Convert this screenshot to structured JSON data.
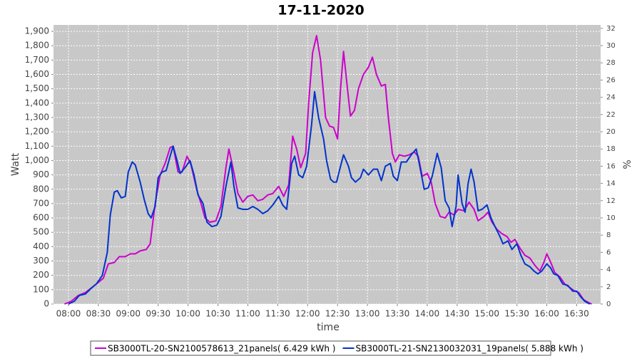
{
  "chart_data": {
    "type": "line",
    "title": "17-11-2020",
    "x_label": "time",
    "y_label": "Watt",
    "y2_label": "%",
    "xlim": [
      "07:45",
      "16:54"
    ],
    "xticks": [
      "08:00",
      "08:30",
      "09:00",
      "09:30",
      "10:00",
      "10:30",
      "11:00",
      "11:30",
      "12:00",
      "12:30",
      "13:00",
      "13:30",
      "14:00",
      "14:30",
      "15:00",
      "15:30",
      "16:00",
      "16:30"
    ],
    "ylim": [
      0,
      1945
    ],
    "yticks": [
      0,
      100,
      200,
      300,
      400,
      500,
      600,
      700,
      800,
      900,
      {
        "value": 1000,
        "label": "1,000"
      },
      {
        "value": 1100,
        "label": "1,100"
      },
      {
        "value": 1200,
        "label": "1,200"
      },
      {
        "value": 1300,
        "label": "1,300"
      },
      {
        "value": 1400,
        "label": "1,400"
      },
      {
        "value": 1500,
        "label": "1,500"
      },
      {
        "value": 1600,
        "label": "1,600"
      },
      {
        "value": 1700,
        "label": "1,700"
      },
      {
        "value": 1800,
        "label": "1,800"
      },
      {
        "value": 1900,
        "label": "1,900"
      }
    ],
    "y2lim": [
      0,
      32.4
    ],
    "y2ticks": [
      0,
      2,
      4,
      6,
      8,
      10,
      12,
      14,
      16,
      18,
      20,
      22,
      24,
      26,
      28,
      30,
      32
    ],
    "grid": true,
    "legend": "bottom",
    "series": [
      {
        "name": "SB3000TL-20-SN2100578613_21panels( 6.429 kWh )",
        "color": "#cc00cc",
        "x": [
          "07:56",
          "08:03",
          "08:10",
          "08:17",
          "08:28",
          "08:35",
          "08:40",
          "08:46",
          "08:51",
          "08:57",
          "09:02",
          "09:07",
          "09:12",
          "09:18",
          "09:22",
          "09:27",
          "09:32",
          "09:37",
          "09:42",
          "09:45",
          "09:50",
          "09:54",
          "09:59",
          "10:03",
          "10:09",
          "10:13",
          "10:17",
          "10:22",
          "10:28",
          "10:33",
          "10:38",
          "10:41",
          "10:45",
          "10:50",
          "10:55",
          "11:00",
          "11:05",
          "11:10",
          "11:15",
          "11:20",
          "11:25",
          "11:31",
          "11:36",
          "11:41",
          "11:45",
          "11:49",
          "11:53",
          "11:58",
          "12:01",
          "12:05",
          "12:09",
          "12:13",
          "12:18",
          "12:22",
          "12:26",
          "12:30",
          "12:33",
          "12:36",
          "12:40",
          "12:43",
          "12:47",
          "12:51",
          "12:56",
          "13:01",
          "13:05",
          "13:09",
          "13:14",
          "13:18",
          "13:21",
          "13:25",
          "13:28",
          "13:32",
          "13:37",
          "13:42",
          "13:47",
          "13:51",
          "13:55",
          "14:00",
          "14:04",
          "14:08",
          "14:13",
          "14:18",
          "14:22",
          "14:27",
          "14:31",
          "14:37",
          "14:42",
          "14:47",
          "14:51",
          "14:57",
          "15:01",
          "15:05",
          "15:10",
          "15:15",
          "15:20",
          "15:24",
          "15:28",
          "15:33",
          "15:38",
          "15:43",
          "15:48",
          "15:53",
          "15:57",
          "16:00",
          "16:04",
          "16:08",
          "16:13",
          "16:18",
          "16:24",
          "16:28",
          "16:32",
          "16:37",
          "16:42",
          "16:45"
        ],
        "values": [
          0,
          20,
          60,
          80,
          140,
          180,
          280,
          290,
          330,
          330,
          350,
          350,
          370,
          380,
          420,
          700,
          900,
          980,
          1090,
          1100,
          920,
          920,
          1030,
          970,
          790,
          700,
          600,
          570,
          580,
          680,
          950,
          1080,
          950,
          770,
          710,
          750,
          760,
          720,
          730,
          760,
          770,
          820,
          750,
          830,
          1170,
          1080,
          950,
          1050,
          1400,
          1750,
          1870,
          1700,
          1300,
          1240,
          1230,
          1150,
          1500,
          1760,
          1500,
          1310,
          1350,
          1500,
          1600,
          1650,
          1720,
          1600,
          1520,
          1530,
          1300,
          1050,
          990,
          1040,
          1030,
          1040,
          1060,
          1030,
          890,
          910,
          850,
          700,
          610,
          600,
          640,
          620,
          660,
          650,
          710,
          660,
          580,
          610,
          640,
          570,
          520,
          490,
          470,
          430,
          450,
          390,
          340,
          320,
          270,
          230,
          290,
          350,
          290,
          220,
          190,
          140,
          110,
          90,
          80,
          30,
          10,
          0
        ]
      },
      {
        "name": "SB3000TL-21-SN2130032031_19panels( 5.888 kWh )",
        "color": "#0033cc",
        "x": [
          "08:00",
          "08:06",
          "08:11",
          "08:17",
          "08:23",
          "08:28",
          "08:34",
          "08:39",
          "08:42",
          "08:46",
          "08:49",
          "08:53",
          "08:57",
          "09:00",
          "09:04",
          "09:07",
          "09:12",
          "09:16",
          "09:20",
          "09:23",
          "09:27",
          "09:30",
          "09:34",
          "09:38",
          "09:42",
          "09:45",
          "09:49",
          "09:52",
          "09:57",
          "10:02",
          "10:06",
          "10:10",
          "10:15",
          "10:19",
          "10:24",
          "10:29",
          "10:33",
          "10:38",
          "10:43",
          "10:46",
          "10:50",
          "10:55",
          "11:00",
          "11:05",
          "11:10",
          "11:15",
          "11:20",
          "11:25",
          "11:31",
          "11:35",
          "11:39",
          "11:44",
          "11:47",
          "11:51",
          "11:55",
          "11:59",
          "12:04",
          "12:07",
          "12:11",
          "12:16",
          "12:19",
          "12:23",
          "12:26",
          "12:29",
          "12:33",
          "12:36",
          "12:41",
          "12:44",
          "12:48",
          "12:53",
          "12:56",
          "13:01",
          "13:06",
          "13:10",
          "13:14",
          "13:18",
          "13:23",
          "13:26",
          "13:30",
          "13:34",
          "13:39",
          "13:44",
          "13:49",
          "13:52",
          "13:57",
          "14:01",
          "14:05",
          "14:10",
          "14:14",
          "14:18",
          "14:22",
          "14:25",
          "14:29",
          "14:31",
          "14:35",
          "14:38",
          "14:41",
          "14:44",
          "14:47",
          "14:51",
          "14:55",
          "15:00",
          "15:04",
          "15:08",
          "15:13",
          "15:16",
          "15:21",
          "15:25",
          "15:30",
          "15:34",
          "15:38",
          "15:43",
          "15:47",
          "15:51",
          "15:55",
          "16:00",
          "16:04",
          "16:07",
          "16:11",
          "16:16",
          "16:21",
          "16:26",
          "16:30",
          "16:34",
          "16:38",
          "16:43"
        ],
        "values": [
          0,
          20,
          60,
          70,
          110,
          140,
          200,
          360,
          620,
          780,
          790,
          740,
          750,
          920,
          990,
          970,
          850,
          730,
          630,
          600,
          680,
          880,
          920,
          930,
          1030,
          1100,
          1000,
          910,
          950,
          1000,
          900,
          760,
          700,
          570,
          540,
          550,
          610,
          820,
          990,
          820,
          670,
          660,
          660,
          680,
          660,
          630,
          650,
          690,
          750,
          690,
          660,
          980,
          1030,
          900,
          880,
          960,
          1250,
          1480,
          1300,
          1150,
          1000,
          870,
          850,
          850,
          960,
          1040,
          960,
          880,
          850,
          880,
          940,
          900,
          940,
          940,
          860,
          960,
          980,
          890,
          860,
          990,
          990,
          1040,
          1080,
          980,
          800,
          810,
          890,
          1050,
          950,
          720,
          670,
          540,
          680,
          900,
          700,
          640,
          840,
          940,
          850,
          650,
          660,
          690,
          600,
          540,
          470,
          420,
          440,
          380,
          420,
          340,
          280,
          260,
          230,
          210,
          230,
          280,
          250,
          210,
          200,
          140,
          130,
          90,
          90,
          50,
          20,
          0
        ]
      }
    ]
  }
}
